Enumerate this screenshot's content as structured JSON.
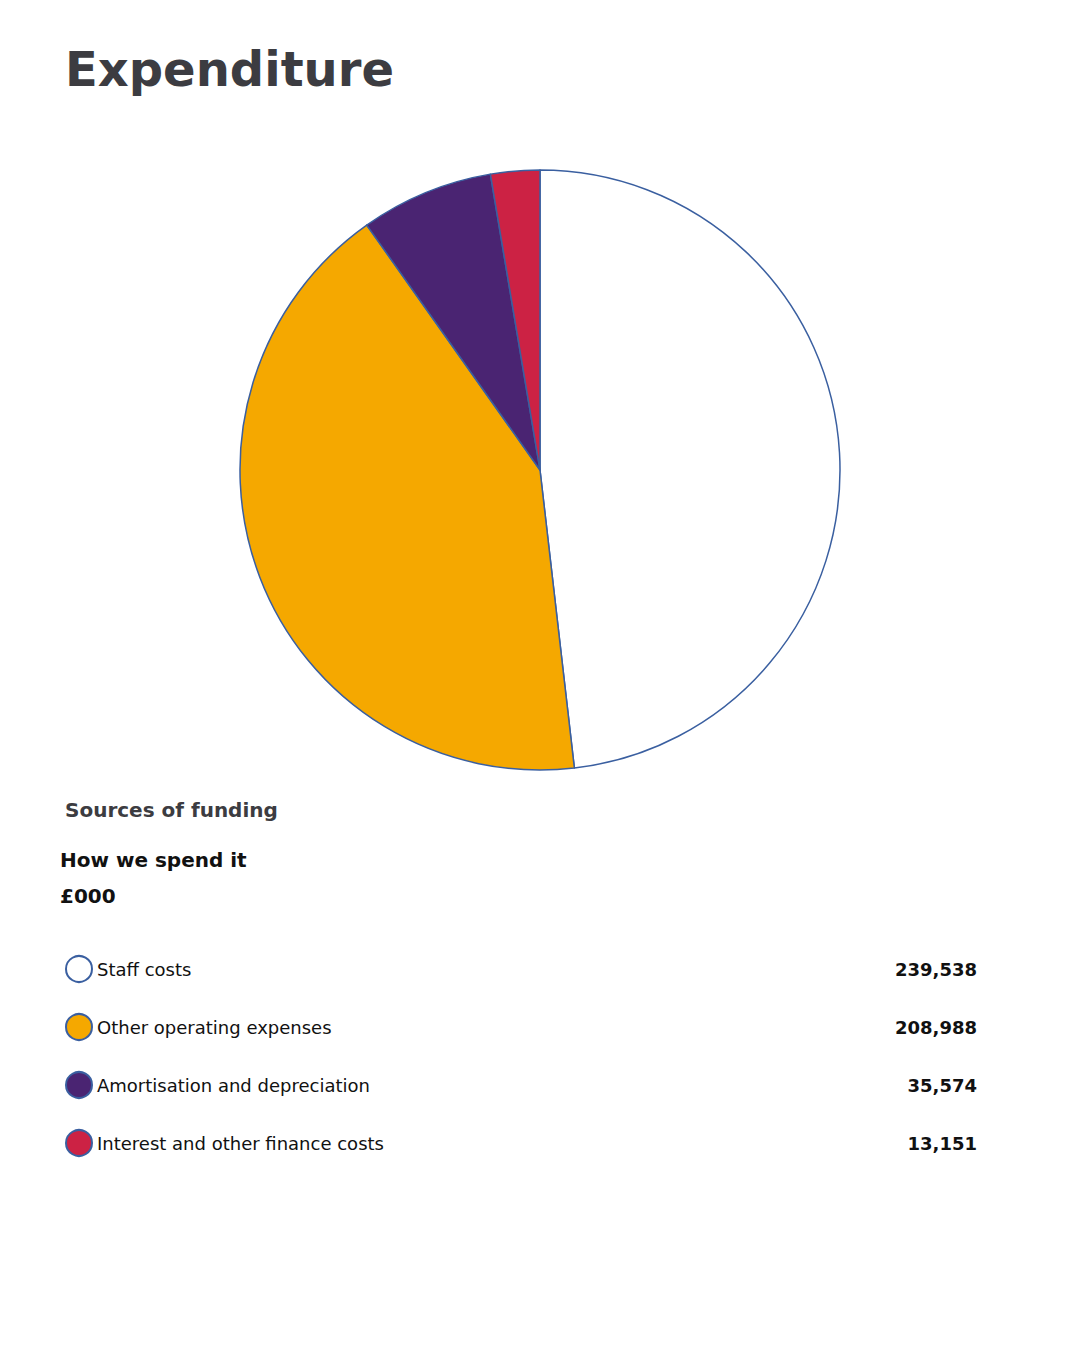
{
  "chart_data": {
    "type": "pie",
    "title": "Expenditure",
    "subtitle": "Sources of funding",
    "annotations": [
      "How we spend it",
      "£000"
    ],
    "categories": [
      "Staff costs",
      "Other operating expenses",
      "Amortisation and depreciation",
      "Interest and other finance costs"
    ],
    "values": [
      239538,
      208988,
      35574,
      13151
    ],
    "value_labels": [
      "239,538",
      "208,988",
      "35,574",
      "13,151"
    ],
    "colors": [
      "#ffffff",
      "#f5a800",
      "#4a2472",
      "#cc2244"
    ],
    "legend": "bottom"
  }
}
